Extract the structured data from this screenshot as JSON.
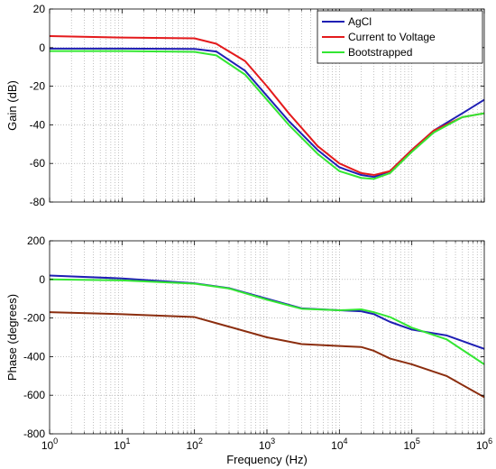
{
  "chart_data": [
    {
      "type": "line",
      "xscale": "log",
      "xlim": [
        1,
        1000000
      ],
      "ylim": [
        -80,
        20
      ],
      "yticks": [
        -80,
        -60,
        -40,
        -20,
        0,
        20
      ],
      "ylabel": "Gain (dB)",
      "xlabel": "",
      "grid": true,
      "legend": "top-right",
      "series": [
        {
          "name": "AgCl",
          "color": "#1f1fb4",
          "points": [
            [
              1,
              -0.5
            ],
            [
              10,
              -0.5
            ],
            [
              100,
              -0.7
            ],
            [
              200,
              -2
            ],
            [
              500,
              -12
            ],
            [
              1000,
              -25
            ],
            [
              2000,
              -38
            ],
            [
              5000,
              -53
            ],
            [
              10000,
              -62
            ],
            [
              20000,
              -66
            ],
            [
              30000,
              -67
            ],
            [
              50000,
              -64
            ],
            [
              100000,
              -53
            ],
            [
              200000,
              -43
            ],
            [
              500000,
              -34
            ],
            [
              1000000,
              -27
            ]
          ]
        },
        {
          "name": "Current to Voltage",
          "color": "#e41a1c",
          "points": [
            [
              1,
              6
            ],
            [
              10,
              5.2
            ],
            [
              100,
              4.8
            ],
            [
              200,
              2
            ],
            [
              500,
              -7
            ],
            [
              1000,
              -20
            ],
            [
              2000,
              -34
            ],
            [
              5000,
              -51
            ],
            [
              10000,
              -60
            ],
            [
              20000,
              -65
            ],
            [
              30000,
              -66
            ],
            [
              50000,
              -64
            ],
            [
              100000,
              -53
            ],
            [
              200000,
              -43
            ],
            [
              500000,
              -36
            ],
            [
              1000000,
              -34
            ]
          ]
        },
        {
          "name": "Bootstrapped",
          "color": "#33e633",
          "points": [
            [
              1,
              -1.8
            ],
            [
              10,
              -1.8
            ],
            [
              100,
              -2.2
            ],
            [
              200,
              -4
            ],
            [
              500,
              -14
            ],
            [
              1000,
              -27
            ],
            [
              2000,
              -40
            ],
            [
              5000,
              -55
            ],
            [
              10000,
              -64
            ],
            [
              20000,
              -67.5
            ],
            [
              30000,
              -68
            ],
            [
              50000,
              -65
            ],
            [
              100000,
              -54
            ],
            [
              200000,
              -44
            ],
            [
              500000,
              -36
            ],
            [
              1000000,
              -34
            ]
          ]
        }
      ]
    },
    {
      "type": "line",
      "xscale": "log",
      "xlim": [
        1,
        1000000
      ],
      "ylim": [
        -800,
        200
      ],
      "yticks": [
        -800,
        -600,
        -400,
        -200,
        0,
        200
      ],
      "xticks": [
        "10^0",
        "10^1",
        "10^2",
        "10^3",
        "10^4",
        "10^5",
        "10^6"
      ],
      "ylabel": "Phase (degrees)",
      "xlabel": "Frequency (Hz)",
      "grid": true,
      "series": [
        {
          "color": "#1f1fb4",
          "points": [
            [
              1,
              20
            ],
            [
              10,
              5
            ],
            [
              100,
              -20
            ],
            [
              300,
              -45
            ],
            [
              1000,
              -100
            ],
            [
              3000,
              -150
            ],
            [
              10000,
              -160
            ],
            [
              20000,
              -165
            ],
            [
              30000,
              -180
            ],
            [
              50000,
              -220
            ],
            [
              100000,
              -260
            ],
            [
              300000,
              -290
            ],
            [
              1000000,
              -360
            ]
          ]
        },
        {
          "color": "#33e633",
          "points": [
            [
              1,
              0
            ],
            [
              10,
              -5
            ],
            [
              100,
              -22
            ],
            [
              300,
              -47
            ],
            [
              1000,
              -105
            ],
            [
              3000,
              -152
            ],
            [
              10000,
              -160
            ],
            [
              20000,
              -155
            ],
            [
              30000,
              -170
            ],
            [
              50000,
              -195
            ],
            [
              100000,
              -250
            ],
            [
              300000,
              -310
            ],
            [
              1000000,
              -440
            ]
          ]
        },
        {
          "color": "#8b2d0e",
          "points": [
            [
              1,
              -170
            ],
            [
              10,
              -180
            ],
            [
              100,
              -195
            ],
            [
              300,
              -245
            ],
            [
              1000,
              -300
            ],
            [
              3000,
              -335
            ],
            [
              10000,
              -345
            ],
            [
              20000,
              -350
            ],
            [
              30000,
              -370
            ],
            [
              50000,
              -410
            ],
            [
              100000,
              -440
            ],
            [
              300000,
              -500
            ],
            [
              1000000,
              -610
            ]
          ]
        }
      ]
    }
  ]
}
